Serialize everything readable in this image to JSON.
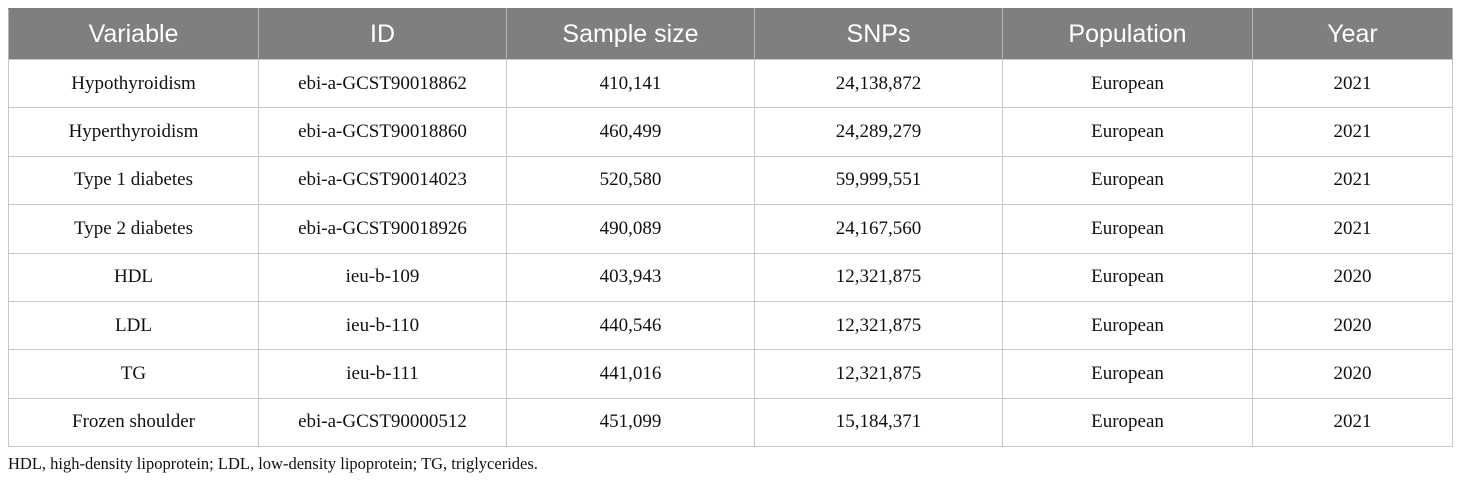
{
  "table": {
    "headers": [
      "Variable",
      "ID",
      "Sample size",
      "SNPs",
      "Population",
      "Year"
    ],
    "rows": [
      [
        "Hypothyroidism",
        "ebi-a-GCST90018862",
        "410,141",
        "24,138,872",
        "European",
        "2021"
      ],
      [
        "Hyperthyroidism",
        "ebi-a-GCST90018860",
        "460,499",
        "24,289,279",
        "European",
        "2021"
      ],
      [
        "Type 1 diabetes",
        "ebi-a-GCST90014023",
        "520,580",
        "59,999,551",
        "European",
        "2021"
      ],
      [
        "Type 2 diabetes",
        "ebi-a-GCST90018926",
        "490,089",
        "24,167,560",
        "European",
        "2021"
      ],
      [
        "HDL",
        "ieu-b-109",
        "403,943",
        "12,321,875",
        "European",
        "2020"
      ],
      [
        "LDL",
        "ieu-b-110",
        "440,546",
        "12,321,875",
        "European",
        "2020"
      ],
      [
        "TG",
        "ieu-b-111",
        "441,016",
        "12,321,875",
        "European",
        "2020"
      ],
      [
        "Frozen shoulder",
        "ebi-a-GCST90000512",
        "451,099",
        "15,184,371",
        "European",
        "2021"
      ]
    ]
  },
  "footnote": "HDL, high-density lipoprotein; LDL, low-density lipoprotein; TG, triglycerides.",
  "colors": {
    "header_background": "#7f7f7f",
    "header_text": "#ffffff",
    "border": "#c8c8c8"
  }
}
